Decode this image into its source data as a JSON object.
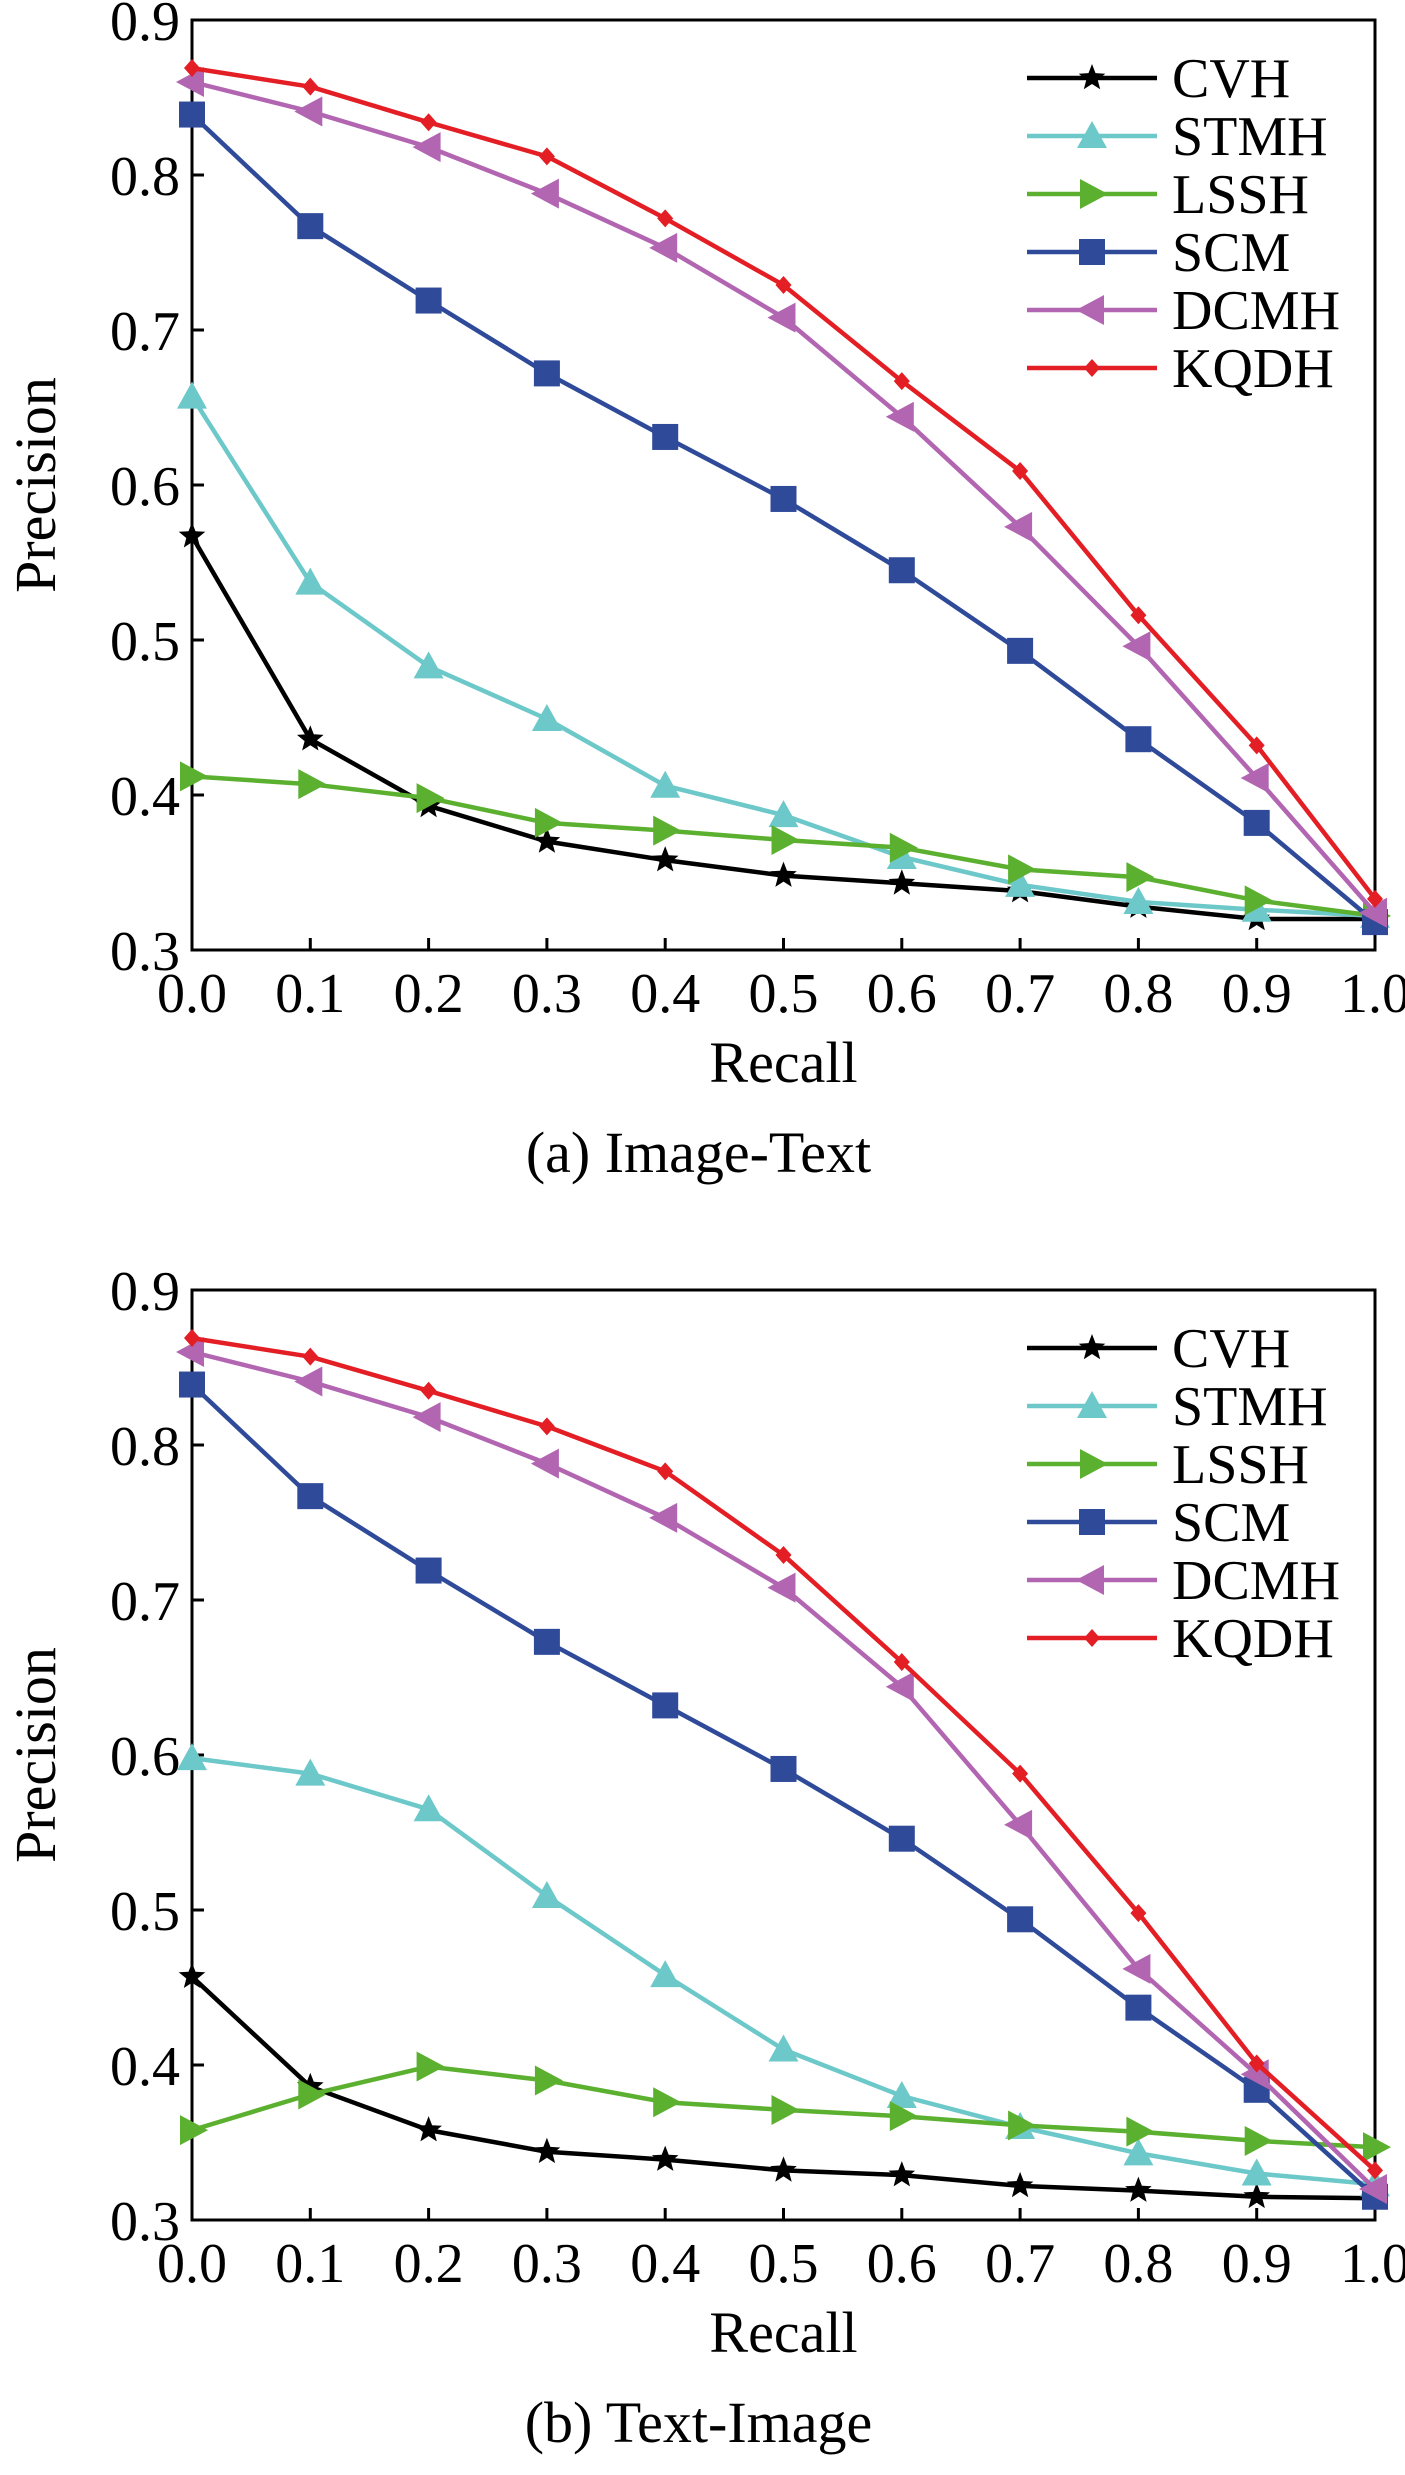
{
  "chart_data": [
    {
      "type": "line",
      "caption": "(a) Image-Text",
      "xlabel": "Recall",
      "ylabel": "Precision",
      "xlim": [
        0.0,
        1.0
      ],
      "ylim": [
        0.3,
        0.9
      ],
      "x": [
        0.0,
        0.1,
        0.2,
        0.3,
        0.4,
        0.5,
        0.6,
        0.7,
        0.8,
        0.9,
        1.0
      ],
      "x_ticks": [
        "0.0",
        "0.1",
        "0.2",
        "0.3",
        "0.4",
        "0.5",
        "0.6",
        "0.7",
        "0.8",
        "0.9",
        "1.0"
      ],
      "y_ticks": [
        "0.3",
        "0.4",
        "0.5",
        "0.6",
        "0.7",
        "0.8",
        "0.9"
      ],
      "legend_position": "top-right",
      "series": [
        {
          "name": "CVH",
          "color": "#000000",
          "marker": "star",
          "values": [
            0.567,
            0.436,
            0.393,
            0.37,
            0.358,
            0.348,
            0.343,
            0.338,
            0.328,
            0.32,
            0.32
          ]
        },
        {
          "name": "STMH",
          "color": "#6dc8c9",
          "marker": "triangle-up",
          "values": [
            0.657,
            0.537,
            0.483,
            0.449,
            0.406,
            0.387,
            0.36,
            0.342,
            0.331,
            0.326,
            0.322
          ]
        },
        {
          "name": "LSSH",
          "color": "#5cb030",
          "marker": "triangle-right",
          "values": [
            0.412,
            0.407,
            0.398,
            0.382,
            0.377,
            0.371,
            0.366,
            0.352,
            0.347,
            0.332,
            0.322
          ]
        },
        {
          "name": "SCM",
          "color": "#2e4a99",
          "marker": "square",
          "values": [
            0.839,
            0.767,
            0.719,
            0.672,
            0.631,
            0.591,
            0.545,
            0.493,
            0.436,
            0.382,
            0.318
          ]
        },
        {
          "name": "DCMH",
          "color": "#b266b2",
          "marker": "triangle-left",
          "values": [
            0.86,
            0.841,
            0.818,
            0.788,
            0.753,
            0.708,
            0.644,
            0.573,
            0.496,
            0.411,
            0.324
          ]
        },
        {
          "name": "KQDH",
          "color": "#e31e24",
          "marker": "diamond",
          "values": [
            0.869,
            0.857,
            0.834,
            0.812,
            0.772,
            0.729,
            0.667,
            0.609,
            0.516,
            0.432,
            0.333
          ]
        }
      ]
    },
    {
      "type": "line",
      "caption": "(b) Text-Image",
      "xlabel": "Recall",
      "ylabel": "Precision",
      "xlim": [
        0.0,
        1.0
      ],
      "ylim": [
        0.3,
        0.9
      ],
      "x": [
        0.0,
        0.1,
        0.2,
        0.3,
        0.4,
        0.5,
        0.6,
        0.7,
        0.8,
        0.9,
        1.0
      ],
      "x_ticks": [
        "0.0",
        "0.1",
        "0.2",
        "0.3",
        "0.4",
        "0.5",
        "0.6",
        "0.7",
        "0.8",
        "0.9",
        "1.0"
      ],
      "y_ticks": [
        "0.3",
        "0.4",
        "0.5",
        "0.6",
        "0.7",
        "0.8",
        "0.9"
      ],
      "legend_position": "top-right",
      "series": [
        {
          "name": "CVH",
          "color": "#000000",
          "marker": "star",
          "values": [
            0.457,
            0.386,
            0.358,
            0.344,
            0.339,
            0.332,
            0.329,
            0.322,
            0.319,
            0.315,
            0.314
          ]
        },
        {
          "name": "STMH",
          "color": "#6dc8c9",
          "marker": "triangle-up",
          "values": [
            0.598,
            0.588,
            0.565,
            0.509,
            0.458,
            0.41,
            0.38,
            0.36,
            0.343,
            0.33,
            0.323
          ]
        },
        {
          "name": "LSSH",
          "color": "#5cb030",
          "marker": "triangle-right",
          "values": [
            0.358,
            0.381,
            0.399,
            0.39,
            0.376,
            0.371,
            0.367,
            0.361,
            0.357,
            0.351,
            0.347
          ]
        },
        {
          "name": "SCM",
          "color": "#2e4a99",
          "marker": "square",
          "values": [
            0.839,
            0.767,
            0.719,
            0.673,
            0.632,
            0.591,
            0.546,
            0.494,
            0.437,
            0.384,
            0.315
          ]
        },
        {
          "name": "DCMH",
          "color": "#b266b2",
          "marker": "triangle-left",
          "values": [
            0.86,
            0.841,
            0.818,
            0.788,
            0.753,
            0.708,
            0.644,
            0.555,
            0.462,
            0.394,
            0.32
          ]
        },
        {
          "name": "KQDH",
          "color": "#e31e24",
          "marker": "diamond",
          "values": [
            0.869,
            0.857,
            0.835,
            0.812,
            0.783,
            0.729,
            0.66,
            0.588,
            0.498,
            0.401,
            0.332
          ]
        }
      ]
    }
  ]
}
